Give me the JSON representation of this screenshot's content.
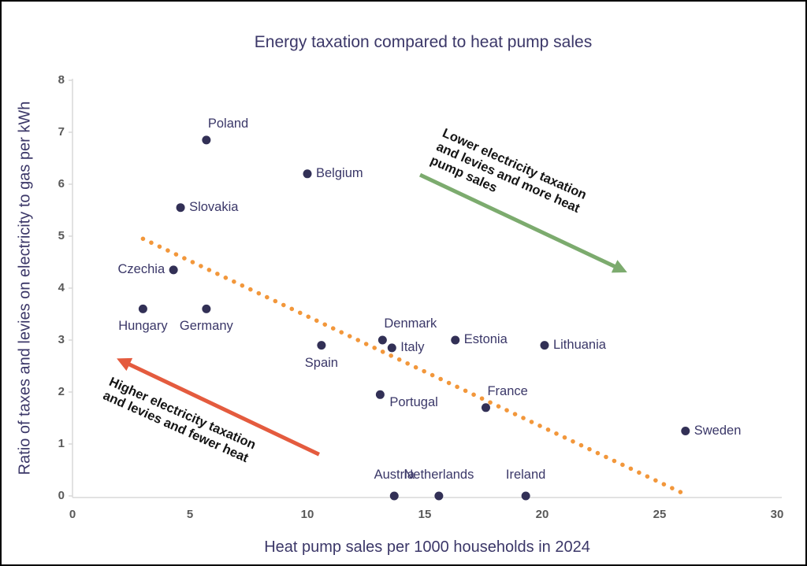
{
  "chart_data": {
    "type": "scatter",
    "title": "Energy taxation compared to heat pump sales",
    "xlabel": "Heat pump sales per 1000 households in 2024",
    "ylabel": "Ratio of taxes and levies on electricity to gas per kWh",
    "xlim": [
      0,
      30
    ],
    "ylim": [
      0,
      8
    ],
    "x_ticks": [
      0,
      5,
      10,
      15,
      20,
      25,
      30
    ],
    "y_ticks": [
      0,
      1,
      2,
      3,
      4,
      5,
      6,
      7,
      8
    ],
    "grid": false,
    "legend": "none",
    "colors": {
      "points": "#323056",
      "labels": "#3a3768",
      "title": "#3b3768",
      "ticks": "#595959",
      "axis": "#d9d9d9"
    },
    "points": [
      {
        "name": "Poland",
        "x": 5.7,
        "y": 6.85,
        "label_pos": "above-right"
      },
      {
        "name": "Belgium",
        "x": 10.0,
        "y": 6.2,
        "label_pos": "right"
      },
      {
        "name": "Slovakia",
        "x": 4.6,
        "y": 5.55,
        "label_pos": "right"
      },
      {
        "name": "Czechia",
        "x": 4.3,
        "y": 4.35,
        "label_pos": "left"
      },
      {
        "name": "Hungary",
        "x": 3.0,
        "y": 3.6,
        "label_pos": "below"
      },
      {
        "name": "Germany",
        "x": 5.7,
        "y": 3.6,
        "label_pos": "below"
      },
      {
        "name": "Spain",
        "x": 10.6,
        "y": 2.9,
        "label_pos": "below"
      },
      {
        "name": "Denmark",
        "x": 13.2,
        "y": 3.0,
        "label_pos": "above-right"
      },
      {
        "name": "Italy",
        "x": 13.6,
        "y": 2.85,
        "label_pos": "right"
      },
      {
        "name": "Estonia",
        "x": 16.3,
        "y": 3.0,
        "label_pos": "right"
      },
      {
        "name": "Lithuania",
        "x": 20.1,
        "y": 2.9,
        "label_pos": "right"
      },
      {
        "name": "Portugal",
        "x": 13.1,
        "y": 1.95,
        "label_pos": "below-right"
      },
      {
        "name": "France",
        "x": 17.6,
        "y": 1.7,
        "label_pos": "above-right"
      },
      {
        "name": "Sweden",
        "x": 26.1,
        "y": 1.25,
        "label_pos": "right"
      },
      {
        "name": "Austria",
        "x": 13.7,
        "y": 0,
        "label_pos": "above"
      },
      {
        "name": "Netherlands",
        "x": 15.6,
        "y": 0,
        "label_pos": "above"
      },
      {
        "name": "Ireland",
        "x": 19.3,
        "y": 0,
        "label_pos": "above"
      }
    ],
    "trendline": {
      "style": "dotted",
      "color": "#f2973b",
      "x1": 3.0,
      "y1": 4.95,
      "x2": 26.0,
      "y2": 0.05
    },
    "annotations": [
      {
        "name": "lower-taxation",
        "label": "Lower electricity taxation and levies and more heat pump sales",
        "lines": [
          "Lower electricity taxation",
          "and levies and more heat",
          "pump sales"
        ],
        "color": "#7cab6e",
        "text_color": "#141414",
        "arrow": {
          "x1": 14.8,
          "y1": 6.18,
          "x2": 23.4,
          "y2": 4.35
        },
        "text_x": 15.9,
        "text_y": 7.12,
        "text_angle": 24
      },
      {
        "name": "higher-taxation",
        "label": "Higher electricity taxation and levies and fewer heat",
        "lines": [
          "Higher electricity taxation",
          "and levies and fewer heat"
        ],
        "color": "#e45b3e",
        "text_color": "#141414",
        "arrow": {
          "x1": 10.5,
          "y1": 0.8,
          "x2": 2.1,
          "y2": 2.6
        },
        "text_x": 1.7,
        "text_y": 2.33,
        "text_angle": 24
      }
    ]
  }
}
